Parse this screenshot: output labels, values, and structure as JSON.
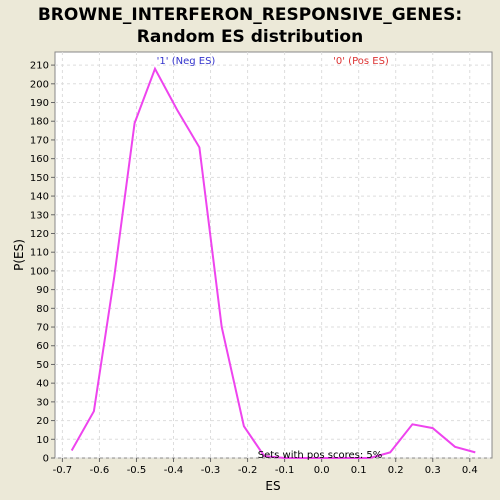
{
  "chart_data": {
    "type": "line",
    "title_line1": "BROWNE_INTERFERON_RESPONSIVE_GENES:",
    "title_line2": "Random ES distribution",
    "xlabel": "ES",
    "ylabel": "P(ES)",
    "xlim": [
      -0.72,
      0.46
    ],
    "ylim": [
      0,
      217
    ],
    "xticks": [
      -0.7,
      -0.6,
      -0.5,
      -0.4,
      -0.3,
      -0.2,
      -0.1,
      0.0,
      0.1,
      0.2,
      0.3,
      0.4
    ],
    "xtick_labels": [
      "-0.7",
      "-0.6",
      "-0.5",
      "-0.4",
      "-0.3",
      "-0.2",
      "-0.1",
      "0.0",
      "0.1",
      "0.2",
      "0.3",
      "0.4"
    ],
    "yticks": [
      0,
      10,
      20,
      30,
      40,
      50,
      60,
      70,
      80,
      90,
      100,
      110,
      120,
      130,
      140,
      150,
      160,
      170,
      180,
      190,
      200,
      210
    ],
    "grid": true,
    "series": [
      {
        "color": "#ee44ee",
        "x": [
          -0.675,
          -0.615,
          -0.56,
          -0.505,
          -0.45,
          -0.39,
          -0.33,
          -0.27,
          -0.21,
          -0.155,
          -0.1,
          -0.04,
          0.02,
          0.075,
          0.13,
          0.185,
          0.245,
          0.3,
          0.36,
          0.415
        ],
        "y": [
          4,
          25,
          97,
          179,
          208,
          186,
          166,
          70,
          17,
          1,
          0,
          0,
          0,
          0,
          0,
          3,
          18,
          16,
          6,
          3
        ]
      }
    ],
    "annotations": {
      "neg_label": "'1' (Neg ES)",
      "pos_label": "'0' (Pos ES)",
      "neg_color": "#3333cc",
      "pos_color": "#dd3333",
      "sets_text": "Sets with pos scores: 5%"
    }
  }
}
